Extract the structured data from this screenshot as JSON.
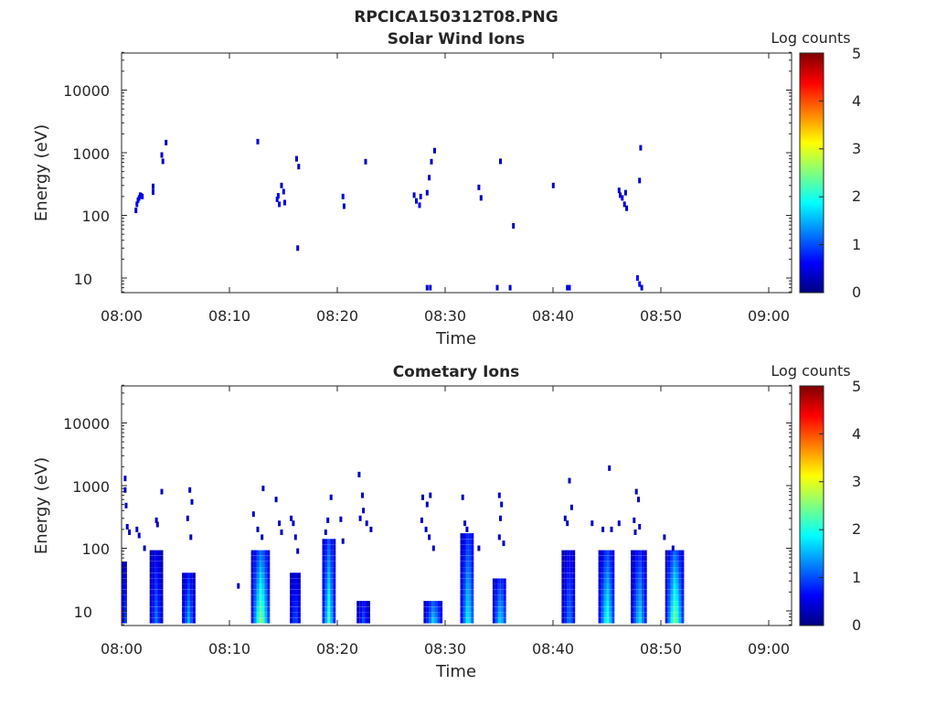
{
  "colors": {
    "axis": "#262626",
    "background": "#ffffff",
    "colormap": [
      "#00007f",
      "#0000ff",
      "#007fff",
      "#00ffff",
      "#7fff7f",
      "#ffff00",
      "#ff7f00",
      "#ff0000",
      "#7f0000"
    ]
  },
  "chart_data": [
    {
      "type": "heatmap",
      "title": "Solar Wind Ions",
      "suptitle": "RPCICA150312T08.PNG",
      "xlabel": "Time",
      "ylabel": "Energy (eV)",
      "x_unit": "minutes after 08:00",
      "xlim": [
        0,
        62
      ],
      "yscale": "log",
      "ylim": [
        6,
        45000
      ],
      "x_tick_labels": [
        "08:00",
        "08:10",
        "08:20",
        "08:30",
        "08:40",
        "08:50",
        "09:00"
      ],
      "y_tick_labels": [
        "10",
        "100",
        "1000",
        "10000"
      ],
      "colorbar": {
        "label": "Log counts",
        "range": [
          0,
          5
        ],
        "tick_labels": [
          "0",
          "1",
          "2",
          "3",
          "4",
          "5"
        ]
      },
      "cells": [
        [
          1.2,
          120,
          0.4
        ],
        [
          1.3,
          150,
          0.5
        ],
        [
          1.4,
          175,
          0.5
        ],
        [
          1.5,
          190,
          0.5
        ],
        [
          1.6,
          210,
          0.5
        ],
        [
          1.7,
          205,
          0.5
        ],
        [
          1.8,
          200,
          0.5
        ],
        [
          2.8,
          235,
          0.4
        ],
        [
          2.8,
          290,
          0.3
        ],
        [
          3.6,
          920,
          0.3
        ],
        [
          3.7,
          730,
          0.3
        ],
        [
          4.0,
          1450,
          0.3
        ],
        [
          12.5,
          1500,
          0.4
        ],
        [
          14.3,
          180,
          0.5
        ],
        [
          14.4,
          205,
          0.6
        ],
        [
          14.5,
          150,
          0.5
        ],
        [
          14.7,
          300,
          0.3
        ],
        [
          14.9,
          240,
          0.5
        ],
        [
          15.0,
          160,
          0.5
        ],
        [
          16.1,
          800,
          0.4
        ],
        [
          16.3,
          600,
          0.3
        ],
        [
          16.2,
          30,
          0.4
        ],
        [
          20.4,
          200,
          0.5
        ],
        [
          20.5,
          140,
          0.4
        ],
        [
          22.5,
          720,
          0.3
        ],
        [
          27.0,
          210,
          0.3
        ],
        [
          27.2,
          170,
          0.5
        ],
        [
          27.5,
          145,
          0.5
        ],
        [
          27.6,
          200,
          0.4
        ],
        [
          28.2,
          7,
          0.4
        ],
        [
          28.5,
          7,
          0.4
        ],
        [
          28.4,
          400,
          0.3
        ],
        [
          28.6,
          720,
          0.3
        ],
        [
          28.9,
          1080,
          0.3
        ],
        [
          28.2,
          230,
          0.3
        ],
        [
          33.0,
          280,
          0.4
        ],
        [
          33.2,
          190,
          0.3
        ],
        [
          34.7,
          7,
          0.4
        ],
        [
          35.0,
          730,
          0.3
        ],
        [
          35.9,
          7,
          0.4
        ],
        [
          36.2,
          68,
          0.3
        ],
        [
          39.9,
          300,
          0.3
        ],
        [
          41.2,
          7,
          0.5
        ],
        [
          41.4,
          7,
          0.5
        ],
        [
          46.0,
          250,
          0.4
        ],
        [
          46.1,
          210,
          0.5
        ],
        [
          46.3,
          190,
          0.5
        ],
        [
          46.5,
          150,
          0.3
        ],
        [
          46.6,
          230,
          0.3
        ],
        [
          46.7,
          130,
          0.3
        ],
        [
          47.7,
          10,
          0.6
        ],
        [
          47.9,
          8,
          0.6
        ],
        [
          48.1,
          7,
          0.4
        ],
        [
          48.0,
          1200,
          0.4
        ],
        [
          47.9,
          360,
          0.3
        ]
      ]
    },
    {
      "type": "heatmap",
      "title": "Cometary Ions",
      "xlabel": "Time",
      "ylabel": "Energy (eV)",
      "x_unit": "minutes after 08:00",
      "xlim": [
        0,
        62
      ],
      "yscale": "log",
      "ylim": [
        6,
        45000
      ],
      "x_tick_labels": [
        "08:00",
        "08:10",
        "08:20",
        "08:30",
        "08:40",
        "08:50",
        "09:00"
      ],
      "y_tick_labels": [
        "10",
        "100",
        "1000",
        "10000"
      ],
      "colorbar": {
        "label": "Log counts",
        "range": [
          0,
          5
        ],
        "tick_labels": [
          "0",
          "1",
          "2",
          "3",
          "4",
          "5"
        ]
      },
      "bursts": [
        {
          "t0": 0.0,
          "t1": 0.4,
          "emax": 60,
          "peak": 1.0
        },
        {
          "t0": 2.6,
          "t1": 3.6,
          "emax": 90,
          "peak": 1.2
        },
        {
          "t0": 5.6,
          "t1": 6.6,
          "emax": 40,
          "peak": 1.5
        },
        {
          "t0": 12.0,
          "t1": 13.6,
          "emax": 90,
          "peak": 2.7
        },
        {
          "t0": 15.6,
          "t1": 16.4,
          "emax": 40,
          "peak": 1.1
        },
        {
          "t0": 18.6,
          "t1": 19.6,
          "emax": 150,
          "peak": 2.2
        },
        {
          "t0": 21.8,
          "t1": 22.8,
          "emax": 15,
          "peak": 1.0
        },
        {
          "t0": 28.0,
          "t1": 29.6,
          "emax": 15,
          "peak": 1.7
        },
        {
          "t0": 31.4,
          "t1": 32.6,
          "emax": 180,
          "peak": 2.0
        },
        {
          "t0": 34.4,
          "t1": 35.6,
          "emax": 30,
          "peak": 1.8
        },
        {
          "t0": 40.8,
          "t1": 42.0,
          "emax": 90,
          "peak": 1.3
        },
        {
          "t0": 44.2,
          "t1": 45.6,
          "emax": 90,
          "peak": 2.2
        },
        {
          "t0": 47.2,
          "t1": 48.6,
          "emax": 90,
          "peak": 1.8
        },
        {
          "t0": 50.4,
          "t1": 52.0,
          "emax": 90,
          "peak": 2.6
        }
      ],
      "cells": [
        [
          0.2,
          1300,
          0.3
        ],
        [
          0.2,
          850,
          0.3
        ],
        [
          0.3,
          480,
          0.3
        ],
        [
          0.4,
          220,
          0.3
        ],
        [
          0.6,
          180,
          0.3
        ],
        [
          1.3,
          200,
          0.3
        ],
        [
          1.5,
          160,
          0.3
        ],
        [
          2.0,
          100,
          0.3
        ],
        [
          3.1,
          280,
          0.3
        ],
        [
          3.2,
          240,
          0.3
        ],
        [
          3.6,
          800,
          0.3
        ],
        [
          6.2,
          850,
          0.3
        ],
        [
          6.4,
          550,
          0.3
        ],
        [
          6.0,
          300,
          0.3
        ],
        [
          6.3,
          150,
          0.3
        ],
        [
          10.7,
          25,
          0.3
        ],
        [
          12.1,
          350,
          0.3
        ],
        [
          12.5,
          200,
          0.3
        ],
        [
          12.9,
          150,
          0.3
        ],
        [
          13.0,
          900,
          0.3
        ],
        [
          14.2,
          600,
          0.3
        ],
        [
          14.5,
          250,
          0.3
        ],
        [
          14.7,
          180,
          0.3
        ],
        [
          15.6,
          300,
          0.3
        ],
        [
          15.8,
          250,
          0.3
        ],
        [
          16.0,
          150,
          0.3
        ],
        [
          16.2,
          90,
          0.3
        ],
        [
          19.3,
          650,
          0.4
        ],
        [
          19.0,
          280,
          0.4
        ],
        [
          18.8,
          180,
          0.3
        ],
        [
          20.2,
          290,
          0.3
        ],
        [
          20.4,
          130,
          0.3
        ],
        [
          21.9,
          1500,
          0.3
        ],
        [
          22.2,
          700,
          0.4
        ],
        [
          22.3,
          400,
          0.3
        ],
        [
          22.0,
          300,
          0.3
        ],
        [
          22.6,
          250,
          0.3
        ],
        [
          23.0,
          200,
          0.3
        ],
        [
          27.8,
          650,
          0.3
        ],
        [
          28.2,
          500,
          0.3
        ],
        [
          28.5,
          700,
          0.3
        ],
        [
          27.7,
          280,
          0.3
        ],
        [
          28.1,
          200,
          0.3
        ],
        [
          28.4,
          150,
          0.3
        ],
        [
          28.8,
          100,
          0.3
        ],
        [
          31.5,
          650,
          0.3
        ],
        [
          31.7,
          250,
          0.3
        ],
        [
          31.9,
          200,
          0.3
        ],
        [
          33.0,
          100,
          0.3
        ],
        [
          34.9,
          700,
          0.4
        ],
        [
          35.1,
          500,
          0.3
        ],
        [
          35.0,
          300,
          0.3
        ],
        [
          34.9,
          150,
          0.3
        ],
        [
          35.3,
          120,
          0.3
        ],
        [
          41.4,
          1200,
          0.3
        ],
        [
          41.6,
          450,
          0.3
        ],
        [
          41.0,
          300,
          0.3
        ],
        [
          41.2,
          250,
          0.3
        ],
        [
          43.5,
          250,
          0.3
        ],
        [
          44.5,
          200,
          0.3
        ],
        [
          45.1,
          1900,
          0.3
        ],
        [
          45.3,
          200,
          0.3
        ],
        [
          46.0,
          250,
          0.3
        ],
        [
          47.6,
          800,
          0.3
        ],
        [
          47.8,
          600,
          0.3
        ],
        [
          47.4,
          280,
          0.3
        ],
        [
          47.9,
          220,
          0.3
        ],
        [
          47.5,
          180,
          0.3
        ],
        [
          50.2,
          150,
          0.3
        ],
        [
          51.0,
          100,
          0.3
        ]
      ]
    }
  ]
}
